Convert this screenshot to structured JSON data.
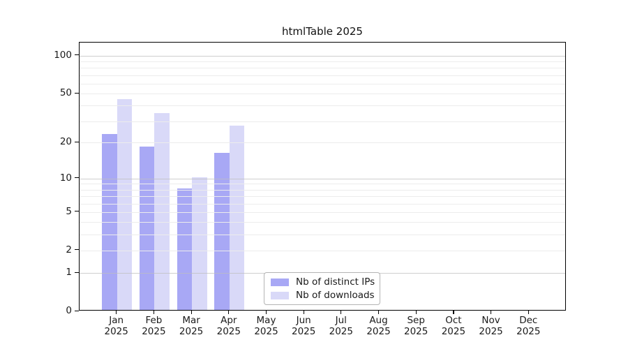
{
  "chart_data": {
    "type": "bar",
    "title": "htmlTable 2025",
    "scale": "log1p",
    "categories": [
      "Jan",
      "Feb",
      "Mar",
      "Apr",
      "May",
      "Jun",
      "Jul",
      "Aug",
      "Sep",
      "Oct",
      "Nov",
      "Dec"
    ],
    "category_year": "2025",
    "series": [
      {
        "name": "Nb of distinct IPs",
        "color": "#a8a8f5",
        "values": [
          23,
          18,
          8,
          16,
          0,
          0,
          0,
          0,
          0,
          0,
          0,
          0
        ]
      },
      {
        "name": "Nb of downloads",
        "color": "#d9d9f8",
        "values": [
          44,
          34,
          10,
          27,
          0,
          0,
          0,
          0,
          0,
          0,
          0,
          0
        ]
      }
    ],
    "ylabel": "",
    "xlabel": "",
    "yticks": [
      0,
      1,
      2,
      5,
      10,
      20,
      50,
      100
    ],
    "ylim": [
      0,
      127
    ],
    "grid": {
      "major_lines": [
        1,
        10,
        100
      ],
      "minor_lines": [
        2,
        3,
        4,
        5,
        6,
        7,
        8,
        9,
        20,
        30,
        40,
        50,
        60,
        70,
        80,
        90
      ],
      "major_color": "#bdbdbd",
      "minor_color": "#ececec"
    },
    "legend": {
      "position": "inside-bottom-center",
      "entries": [
        "Nb of distinct IPs",
        "Nb of downloads"
      ]
    },
    "colors": {
      "distinct_ips": "#a8a8f5",
      "downloads": "#d9d9f8",
      "spine": "#000000",
      "background": "#ffffff"
    }
  }
}
